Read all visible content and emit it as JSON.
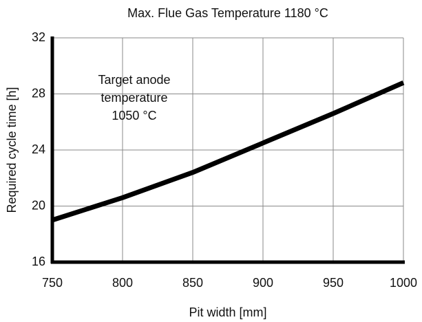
{
  "chart_data": {
    "type": "line",
    "title": "Max. Flue Gas Temperature 1180 °C",
    "annotation": [
      "Target anode",
      "temperature",
      "1050 °C"
    ],
    "x_label": "Pit width [mm]",
    "y_label": "Required cycle time [h]",
    "x": [
      750,
      800,
      850,
      900,
      950,
      1000
    ],
    "series": [
      {
        "name": "Required cycle time",
        "color": "#000000",
        "values": [
          19.0,
          20.6,
          22.4,
          24.5,
          26.6,
          28.8
        ]
      }
    ],
    "xlim": [
      750,
      1000
    ],
    "xticks": [
      750,
      800,
      850,
      900,
      950,
      1000
    ],
    "ylim": [
      16,
      32
    ],
    "yticks": [
      16,
      20,
      24,
      28,
      32
    ],
    "grid": true
  }
}
